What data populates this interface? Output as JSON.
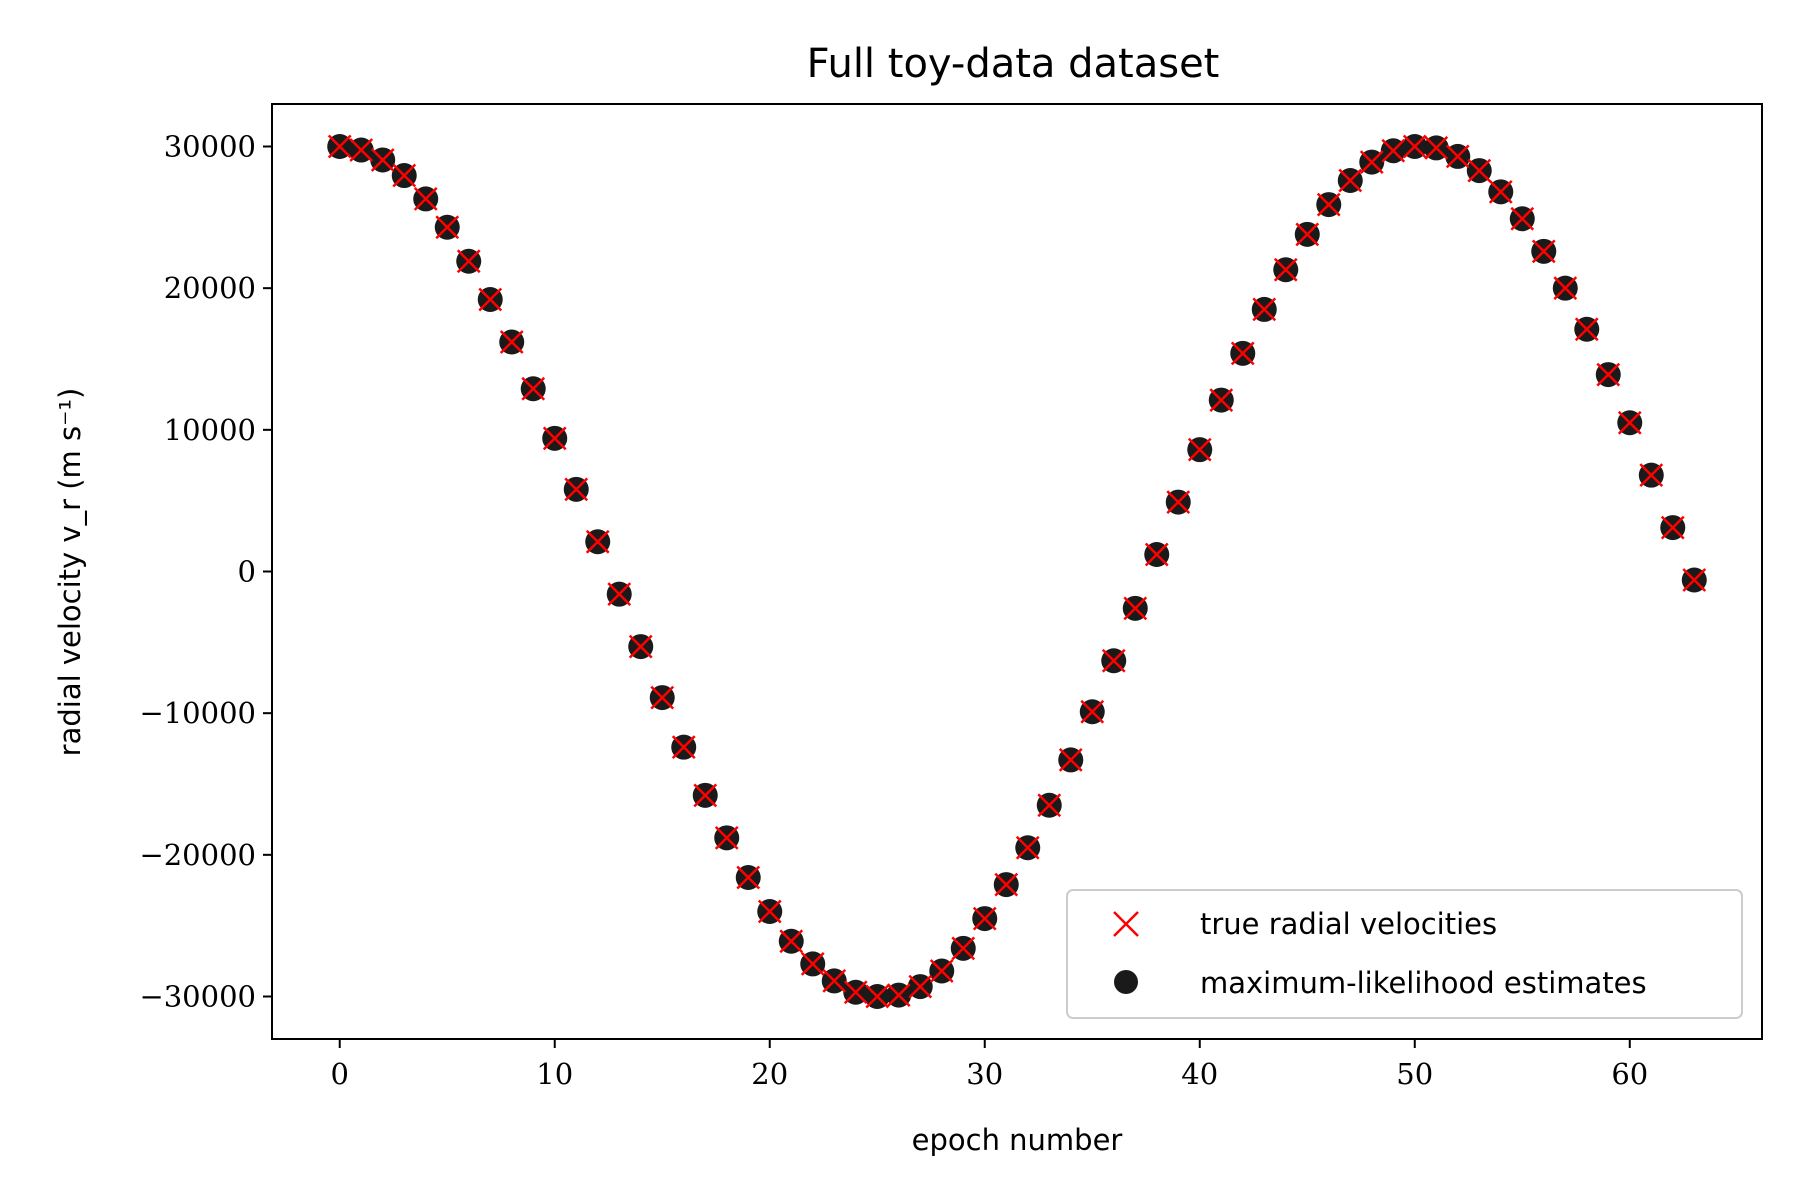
{
  "chart_data": {
    "type": "scatter",
    "title": "Full toy-data dataset",
    "xlabel": "epoch number",
    "ylabel": "radial velocity v_r (m s⁻¹)",
    "xlim": [
      -3.15,
      66.15
    ],
    "ylim": [
      -33000,
      33000
    ],
    "xticks": [
      0,
      10,
      20,
      30,
      40,
      50,
      60
    ],
    "yticks": [
      -30000,
      -20000,
      -10000,
      0,
      10000,
      20000,
      30000
    ],
    "xtick_labels": [
      "0",
      "10",
      "20",
      "30",
      "40",
      "50",
      "60"
    ],
    "ytick_labels": [
      "−30000",
      "−20000",
      "−10000",
      "0",
      "10000",
      "20000",
      "30000"
    ],
    "grid": false,
    "legend_position": "lower right",
    "series": [
      {
        "name": "true radial velocities",
        "marker": "x",
        "color": "#ff0000",
        "x": [
          0,
          1,
          2,
          3,
          4,
          5,
          6,
          7,
          8,
          9,
          10,
          11,
          12,
          13,
          14,
          15,
          16,
          17,
          18,
          19,
          20,
          21,
          22,
          23,
          24,
          25,
          26,
          27,
          28,
          29,
          30,
          31,
          32,
          33,
          34,
          35,
          36,
          37,
          38,
          39,
          40,
          41,
          42,
          43,
          44,
          45,
          46,
          47,
          48,
          49,
          50,
          51,
          52,
          53,
          54,
          55,
          56,
          57,
          58,
          59,
          60,
          61,
          62,
          63
        ],
        "y": [
          30000,
          29750,
          29050,
          27950,
          26300,
          24300,
          21900,
          19200,
          16200,
          12900,
          9400,
          5800,
          2100,
          -1600,
          -5300,
          -8900,
          -12400,
          -15800,
          -18800,
          -21600,
          -24000,
          -26100,
          -27700,
          -28900,
          -29700,
          -30000,
          -29900,
          -29300,
          -28200,
          -26600,
          -24500,
          -22100,
          -19500,
          -16500,
          -13300,
          -9900,
          -6300,
          -2600,
          1200,
          4900,
          8600,
          12100,
          15400,
          18500,
          21300,
          23800,
          25900,
          27600,
          28900,
          29700,
          30000,
          29900,
          29300,
          28300,
          26800,
          24900,
          22600,
          20000,
          17100,
          13900,
          10500,
          6800,
          3100,
          -600
        ]
      },
      {
        "name": "maximum-likelihood estimates",
        "marker": "o",
        "color": "#1a1a1a",
        "x": [
          0,
          1,
          2,
          3,
          4,
          5,
          6,
          7,
          8,
          9,
          10,
          11,
          12,
          13,
          14,
          15,
          16,
          17,
          18,
          19,
          20,
          21,
          22,
          23,
          24,
          25,
          26,
          27,
          28,
          29,
          30,
          31,
          32,
          33,
          34,
          35,
          36,
          37,
          38,
          39,
          40,
          41,
          42,
          43,
          44,
          45,
          46,
          47,
          48,
          49,
          50,
          51,
          52,
          53,
          54,
          55,
          56,
          57,
          58,
          59,
          60,
          61,
          62,
          63
        ],
        "y": [
          30000,
          29750,
          29050,
          27950,
          26300,
          24300,
          21900,
          19200,
          16200,
          12900,
          9400,
          5800,
          2100,
          -1600,
          -5300,
          -8900,
          -12400,
          -15800,
          -18800,
          -21600,
          -24000,
          -26100,
          -27700,
          -28900,
          -29700,
          -30000,
          -29900,
          -29300,
          -28200,
          -26600,
          -24500,
          -22100,
          -19500,
          -16500,
          -13300,
          -9900,
          -6300,
          -2600,
          1200,
          4900,
          8600,
          12100,
          15400,
          18500,
          21300,
          23800,
          25900,
          27600,
          28900,
          29700,
          30000,
          29900,
          29300,
          28300,
          26800,
          24900,
          22600,
          20000,
          17100,
          13900,
          10500,
          6800,
          3100,
          -600
        ]
      }
    ]
  }
}
